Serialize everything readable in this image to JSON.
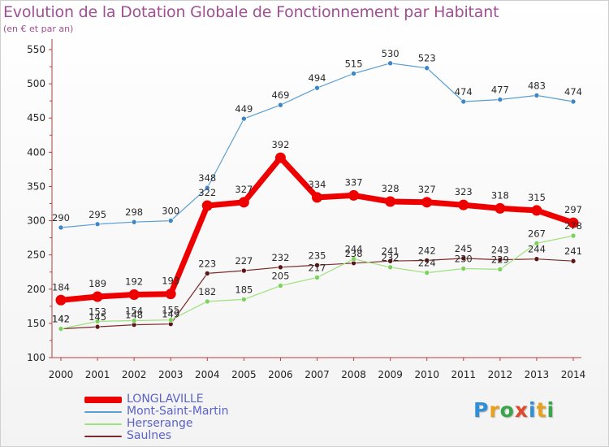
{
  "header": {
    "title": "Evolution de la Dotation Globale de Fonctionnement par Habitant",
    "subtitle": "(en € et par an)"
  },
  "logo": {
    "text": "Proxiti",
    "colors": [
      "#2f8fd8",
      "#e9a11c",
      "#3aa64a",
      "#e04a2c",
      "#2f8fd8",
      "#e9a11c",
      "#3aa64a"
    ]
  },
  "colors": {
    "title": "#a04f94",
    "legend_text": "#5b62c8",
    "axis": "#bb3b3b"
  },
  "chart_data": {
    "type": "line",
    "x": [
      "2000",
      "2001",
      "2002",
      "2003",
      "2004",
      "2005",
      "2006",
      "2007",
      "2008",
      "2009",
      "2010",
      "2011",
      "2012",
      "2013",
      "2014"
    ],
    "ylim": [
      100,
      550
    ],
    "yticks": [
      100,
      150,
      200,
      250,
      300,
      350,
      400,
      450,
      500,
      550
    ],
    "grid": false,
    "legend_position": "bottom-left",
    "series": [
      {
        "name": "Mont-Saint-Martin",
        "color": "#5a9fd4",
        "point": "#3f86c6",
        "width": 1.2,
        "radius": 3,
        "values": [
          290,
          295,
          298,
          300,
          348,
          449,
          469,
          494,
          515,
          530,
          523,
          474,
          477,
          483,
          474
        ],
        "labels": [
          "290",
          "295",
          "298",
          "300",
          "348",
          "449",
          "469",
          "494",
          "515",
          "530",
          "523",
          "474",
          "477",
          "483",
          "474"
        ]
      },
      {
        "name": "Saulnes",
        "color": "#7a2a2a",
        "point": "#5c1515",
        "width": 1.2,
        "radius": 3,
        "values": [
          142,
          145,
          148,
          149,
          223,
          227,
          232,
          235,
          238,
          241,
          242,
          245,
          243,
          244,
          241
        ],
        "labels": [
          "142",
          "145",
          "148",
          "149",
          "223",
          "227",
          "232",
          "235",
          "238",
          "241",
          "242",
          "245",
          "243",
          "244",
          "241"
        ]
      },
      {
        "name": "Herserange",
        "color": "#9ee07c",
        "point": "#7cd25a",
        "width": 1.2,
        "radius": 3,
        "values": [
          142,
          153,
          154,
          155,
          182,
          185,
          205,
          217,
          244,
          232,
          224,
          230,
          229,
          267,
          278
        ],
        "labels": [
          "142",
          "153",
          "154",
          "155",
          "182",
          "185",
          "205",
          "217",
          "244",
          "232",
          "224",
          "230",
          "229",
          "267",
          "278"
        ]
      },
      {
        "name": "LONGLAVILLE",
        "color": "#ee0000",
        "point": "#ee0000",
        "width": 7,
        "radius": 6.5,
        "values": [
          184,
          189,
          192,
          193,
          322,
          327,
          392,
          334,
          337,
          328,
          327,
          323,
          318,
          315,
          297
        ],
        "labels": [
          "184",
          "189",
          "192",
          "193",
          "322",
          "327",
          "392",
          "334",
          "337",
          "328",
          "327",
          "323",
          "318",
          "315",
          "297"
        ]
      }
    ],
    "legend": [
      {
        "name": "LONGLAVILLE",
        "color": "#ee0000",
        "thick": true
      },
      {
        "name": "Mont-Saint-Martin",
        "color": "#5a9fd4",
        "thick": false
      },
      {
        "name": "Herserange",
        "color": "#9ee07c",
        "thick": false
      },
      {
        "name": "Saulnes",
        "color": "#7a2a2a",
        "thick": false
      }
    ]
  }
}
